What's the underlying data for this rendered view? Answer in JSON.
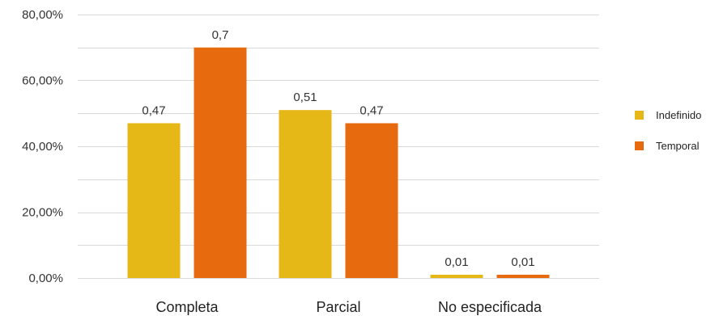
{
  "chart_data": {
    "type": "bar",
    "categories": [
      "Completa",
      "Parcial",
      "No especificada"
    ],
    "series": [
      {
        "name": "Indefinido",
        "values": [
          0.47,
          0.51,
          0.01
        ],
        "labels": [
          "0,47",
          "0,51",
          "0,01"
        ],
        "color": "#E5B817"
      },
      {
        "name": "Temporal",
        "values": [
          0.7,
          0.47,
          0.01
        ],
        "labels": [
          "0,7",
          "0,47",
          "0,01"
        ],
        "color": "#E86A0E"
      }
    ],
    "ylim": [
      0,
      0.8
    ],
    "yticks": [
      0,
      0.2,
      0.4,
      0.6,
      0.8
    ],
    "ytick_labels": [
      "0,00%",
      "20,00%",
      "40,00%",
      "60,00%",
      "80,00%"
    ],
    "grid": true,
    "legend_position": "right"
  }
}
